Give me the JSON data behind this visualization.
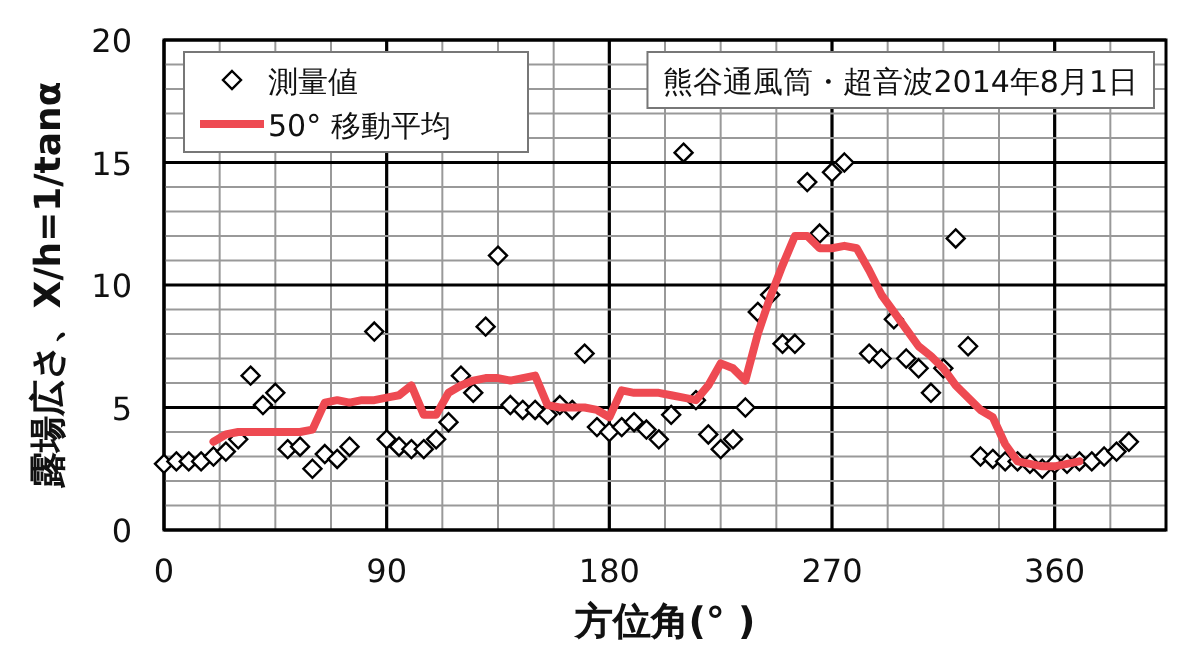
{
  "chart_data": {
    "type": "scatter",
    "title": "熊谷通風筒・超音波2014年8月1日",
    "xlabel": "方位角(° )",
    "ylabel": "露場広さ、X/h=1/tanα",
    "xlim": [
      0,
      405
    ],
    "ylim": [
      0,
      20
    ],
    "xticks": [
      0,
      {
        "value": 22.5,
        "label": null
      },
      {
        "value": 45,
        "label": null
      },
      {
        "value": 67.5,
        "label": null
      },
      90,
      {
        "value": 112.5,
        "label": null
      },
      {
        "value": 135,
        "label": null
      },
      {
        "value": 157.5,
        "label": null
      },
      180,
      {
        "value": 202.5,
        "label": null
      },
      {
        "value": 225,
        "label": null
      },
      {
        "value": 247.5,
        "label": null
      },
      270,
      {
        "value": 292.5,
        "label": null
      },
      {
        "value": 315,
        "label": null
      },
      {
        "value": 337.5,
        "label": null
      },
      360,
      {
        "value": 382.5,
        "label": null
      },
      {
        "value": 405,
        "label": null
      }
    ],
    "yticks": [
      0,
      {
        "value": 1,
        "label": null
      },
      {
        "value": 2,
        "label": null
      },
      {
        "value": 3,
        "label": null
      },
      {
        "value": 4,
        "label": null
      },
      5,
      {
        "value": 6,
        "label": null
      },
      {
        "value": 7,
        "label": null
      },
      {
        "value": 8,
        "label": null
      },
      {
        "value": 9,
        "label": null
      },
      10,
      {
        "value": 11,
        "label": null
      },
      {
        "value": 12,
        "label": null
      },
      {
        "value": 13,
        "label": null
      },
      {
        "value": 14,
        "label": null
      },
      15,
      {
        "value": 16,
        "label": null
      },
      {
        "value": 17,
        "label": null
      },
      {
        "value": 18,
        "label": null
      },
      {
        "value": 19,
        "label": null
      },
      20
    ],
    "grid": true,
    "legend": "top left",
    "series": [
      {
        "name": "測量値",
        "marker": "diamond",
        "color": "#000000",
        "x": [
          0,
          5,
          10,
          15,
          20,
          25,
          30,
          35,
          40,
          45,
          50,
          55,
          60,
          65,
          70,
          75,
          85,
          90,
          95,
          100,
          105,
          110,
          115,
          120,
          125,
          130,
          135,
          140,
          145,
          150,
          155,
          160,
          165,
          170,
          175,
          180,
          185,
          190,
          195,
          200,
          205,
          210,
          215,
          220,
          225,
          230,
          235,
          240,
          245,
          250,
          255,
          260,
          265,
          270,
          275,
          285,
          290,
          295,
          300,
          305,
          310,
          315,
          320,
          325,
          330,
          335,
          340,
          345,
          350,
          355,
          360,
          365,
          370,
          375,
          380,
          385,
          390
        ],
        "values": [
          2.7,
          2.8,
          2.8,
          2.8,
          3.0,
          3.2,
          3.7,
          6.3,
          5.1,
          5.6,
          3.3,
          3.4,
          2.5,
          3.1,
          2.9,
          3.4,
          8.1,
          3.7,
          3.4,
          3.3,
          3.3,
          3.7,
          4.4,
          6.3,
          5.6,
          8.3,
          11.2,
          5.1,
          4.9,
          4.9,
          4.7,
          5.1,
          4.9,
          7.2,
          4.2,
          4.0,
          4.2,
          4.4,
          4.1,
          3.7,
          4.7,
          15.4,
          5.3,
          3.9,
          3.3,
          3.7,
          5.0,
          8.9,
          9.6,
          7.6,
          7.6,
          14.2,
          12.1,
          14.6,
          15.0,
          7.2,
          7.0,
          8.6,
          7.0,
          6.6,
          5.6,
          6.6,
          11.9,
          7.5,
          3.0,
          2.9,
          2.8,
          2.8,
          2.7,
          2.5,
          2.7,
          2.7,
          2.8,
          2.8,
          3.0,
          3.2,
          3.6
        ]
      },
      {
        "name": "50° 移動平均",
        "type": "line",
        "marker": "none",
        "line_style": "solid",
        "color": "#ee4a52",
        "x": [
          20,
          25,
          30,
          35,
          40,
          45,
          50,
          55,
          60,
          65,
          70,
          75,
          80,
          85,
          90,
          95,
          100,
          105,
          110,
          115,
          120,
          125,
          130,
          135,
          140,
          145,
          150,
          155,
          160,
          165,
          170,
          175,
          180,
          185,
          190,
          195,
          200,
          205,
          210,
          215,
          220,
          225,
          230,
          235,
          240,
          245,
          250,
          255,
          260,
          265,
          270,
          275,
          280,
          285,
          290,
          295,
          300,
          305,
          310,
          315,
          320,
          325,
          330,
          335,
          340,
          345,
          350,
          355,
          360,
          365,
          370
        ],
        "values": [
          3.6,
          3.9,
          4.0,
          4.0,
          4.0,
          4.0,
          4.0,
          4.0,
          4.1,
          5.2,
          5.3,
          5.2,
          5.3,
          5.3,
          5.4,
          5.5,
          5.9,
          4.7,
          4.7,
          5.6,
          5.9,
          6.1,
          6.2,
          6.2,
          6.1,
          6.2,
          6.3,
          5.1,
          5.0,
          5.0,
          5.0,
          4.9,
          4.6,
          5.7,
          5.6,
          5.6,
          5.6,
          5.5,
          5.4,
          5.3,
          5.9,
          6.8,
          6.6,
          6.1,
          8.0,
          9.5,
          10.8,
          12.0,
          12.0,
          11.5,
          11.5,
          11.6,
          11.5,
          10.6,
          9.6,
          8.9,
          8.2,
          7.5,
          7.1,
          6.6,
          5.9,
          5.4,
          4.9,
          4.6,
          3.5,
          2.8,
          2.7,
          2.6,
          2.6,
          2.7,
          2.8
        ]
      }
    ]
  }
}
